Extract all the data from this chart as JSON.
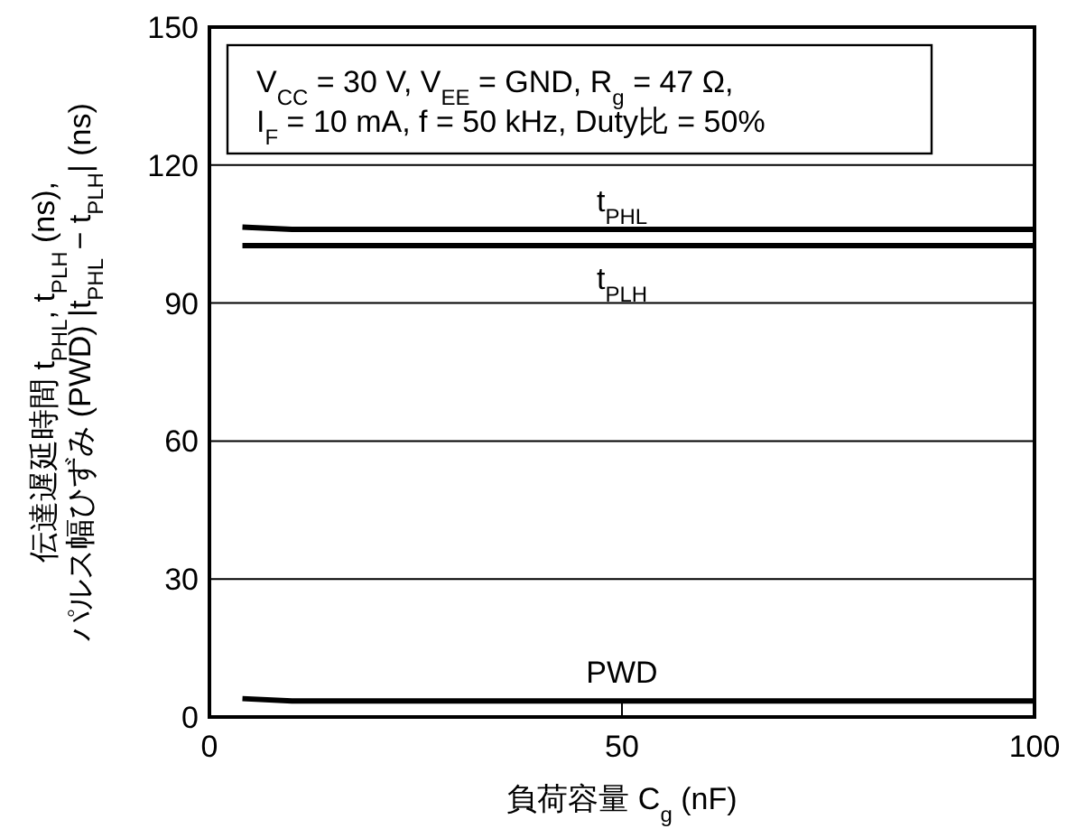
{
  "chart_data": {
    "type": "line",
    "xlabel": "負荷容量  C$_{g}$ (nF)",
    "ylabel": "伝達遅延時間 t$_{PHL}$, t$_{PLH}$ (ns),\nパルス幅ひずみ (PWD) |t$_{PHL}$ − t$_{PLH}$| (ns)",
    "x": [
      4,
      10,
      100
    ],
    "series": [
      {
        "name": "t$_{PHL}$",
        "color": "#000000",
        "values": [
          106.5,
          106,
          106
        ]
      },
      {
        "name": "t$_{PLH}$",
        "color": "#000000",
        "values": [
          102.5,
          102.5,
          102.5
        ]
      },
      {
        "name": "PWD",
        "color": "#000000",
        "values": [
          4,
          3.5,
          3.5
        ]
      }
    ],
    "xlim": [
      0,
      100
    ],
    "ylim": [
      0,
      150
    ],
    "xticks": [
      0,
      50,
      100
    ],
    "yticks": [
      0,
      30,
      60,
      90,
      120,
      150
    ],
    "grid": "y",
    "annotations": [
      "V$_{CC}$ = 30 V, V$_{EE}$ = GND, R$_{g}$ = 47 Ω,",
      "I$_{F}$ = 10 mA, f = 50 kHz, Duty比 = 50%"
    ]
  }
}
